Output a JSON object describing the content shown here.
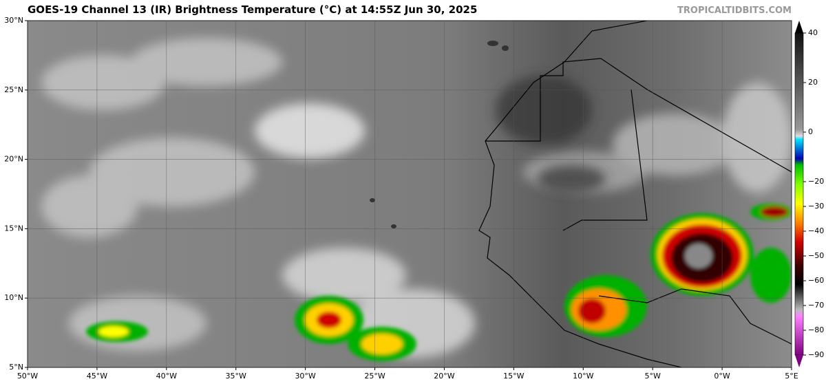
{
  "header": {
    "title": "GOES-19 Channel 13 (IR) Brightness Temperature (°C) at 14:55Z Jun 30, 2025",
    "source": "TROPICALTIDBITS.COM"
  },
  "map": {
    "xlim": [
      -50,
      5
    ],
    "ylim": [
      5,
      30
    ],
    "xticks": [
      {
        "value": -50,
        "label": "50°W"
      },
      {
        "value": -45,
        "label": "45°W"
      },
      {
        "value": -40,
        "label": "40°W"
      },
      {
        "value": -35,
        "label": "35°W"
      },
      {
        "value": -30,
        "label": "30°W"
      },
      {
        "value": -25,
        "label": "25°W"
      },
      {
        "value": -20,
        "label": "20°W"
      },
      {
        "value": -15,
        "label": "15°W"
      },
      {
        "value": -10,
        "label": "10°W"
      },
      {
        "value": -5,
        "label": "5°W"
      },
      {
        "value": 0,
        "label": "0°W"
      },
      {
        "value": 5,
        "label": "5°E"
      }
    ],
    "yticks": [
      {
        "value": 5,
        "label": "5°N"
      },
      {
        "value": 10,
        "label": "10°N"
      },
      {
        "value": 15,
        "label": "15°N"
      },
      {
        "value": 20,
        "label": "20°N"
      },
      {
        "value": 25,
        "label": "25°N"
      },
      {
        "value": 30,
        "label": "30°N"
      }
    ]
  },
  "colorbar": {
    "lim": [
      -90,
      40
    ],
    "ticks": [
      {
        "value": 40,
        "label": "40"
      },
      {
        "value": 20,
        "label": "20"
      },
      {
        "value": 0,
        "label": "0"
      },
      {
        "value": -20,
        "label": "−20"
      },
      {
        "value": -30,
        "label": "−30"
      },
      {
        "value": -40,
        "label": "−40"
      },
      {
        "value": -50,
        "label": "−50"
      },
      {
        "value": -60,
        "label": "−60"
      },
      {
        "value": -70,
        "label": "−70"
      },
      {
        "value": -80,
        "label": "−80"
      },
      {
        "value": -90,
        "label": "−90"
      }
    ]
  }
}
